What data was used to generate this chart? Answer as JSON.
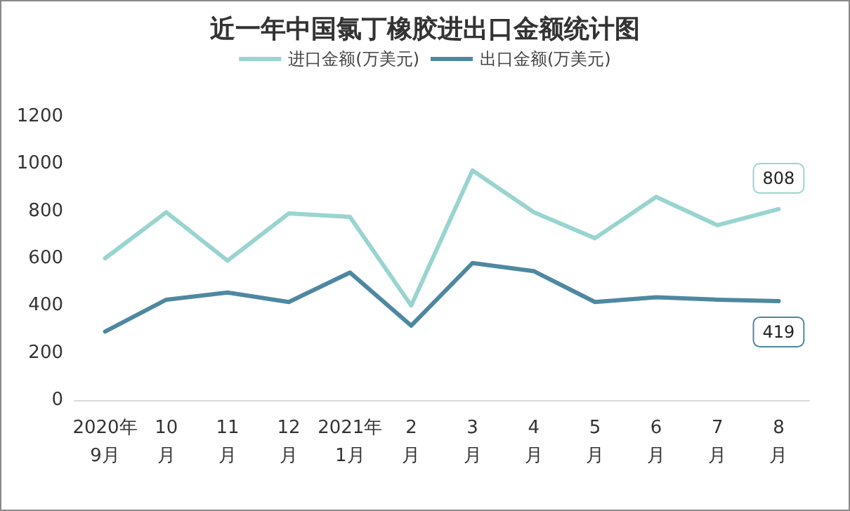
{
  "chart_data": {
    "type": "line",
    "title": "近一年中国氯丁橡胶进出口金额统计图",
    "categories": [
      "2020年\n9月",
      "10\n月",
      "11\n月",
      "12\n月",
      "2021年\n1月",
      "2\n月",
      "3\n月",
      "4\n月",
      "5\n月",
      "6\n月",
      "7\n月",
      "8\n月"
    ],
    "series": [
      {
        "name": "进口金额(万美元)",
        "color": "#99d4d0",
        "values": [
          600,
          795,
          590,
          790,
          775,
          400,
          972,
          795,
          685,
          860,
          740,
          808
        ],
        "value_labels": [
          null,
          null,
          null,
          null,
          null,
          null,
          null,
          null,
          null,
          null,
          null,
          "808"
        ]
      },
      {
        "name": "出口金额(万美元)",
        "color": "#4e88a0",
        "values": [
          290,
          425,
          455,
          415,
          540,
          315,
          580,
          546,
          415,
          435,
          425,
          419
        ],
        "value_labels": [
          null,
          null,
          null,
          null,
          null,
          null,
          null,
          null,
          null,
          null,
          null,
          "419"
        ]
      }
    ],
    "ylim": [
      0,
      1200
    ],
    "yticks": [
      0,
      200,
      400,
      600,
      800,
      1000,
      1200
    ],
    "grid": false,
    "legend": "top",
    "marker": "none",
    "line_style": "solid"
  }
}
